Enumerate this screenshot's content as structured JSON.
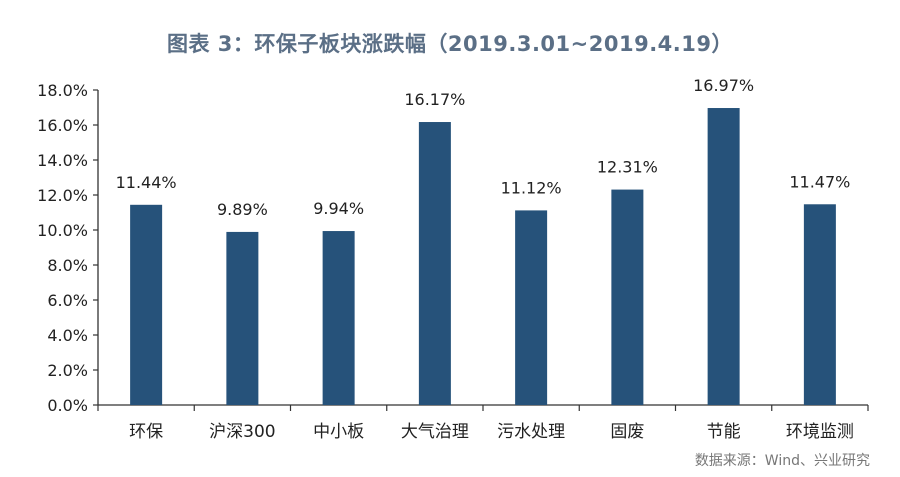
{
  "chart_data": {
    "type": "bar",
    "title": "图表 3：环保子板块涨跌幅（2019.3.01~2019.4.19）",
    "categories": [
      "环保",
      "沪深300",
      "中小板",
      "大气治理",
      "污水处理",
      "固废",
      "节能",
      "环境监测"
    ],
    "values": [
      11.44,
      9.89,
      9.94,
      16.17,
      11.12,
      12.31,
      16.97,
      11.47
    ],
    "data_labels": [
      "11.44%",
      "9.89%",
      "9.94%",
      "16.17%",
      "11.12%",
      "12.31%",
      "16.97%",
      "11.47%"
    ],
    "y_ticks": [
      "0.0%",
      "2.0%",
      "4.0%",
      "6.0%",
      "8.0%",
      "10.0%",
      "12.0%",
      "14.0%",
      "16.0%",
      "18.0%"
    ],
    "ylim": [
      0,
      18
    ],
    "xlabel": "",
    "ylabel": "",
    "grid": false,
    "legend": "none",
    "bar_color": "#26527a",
    "source": "数据来源：Wind、兴业研究"
  }
}
